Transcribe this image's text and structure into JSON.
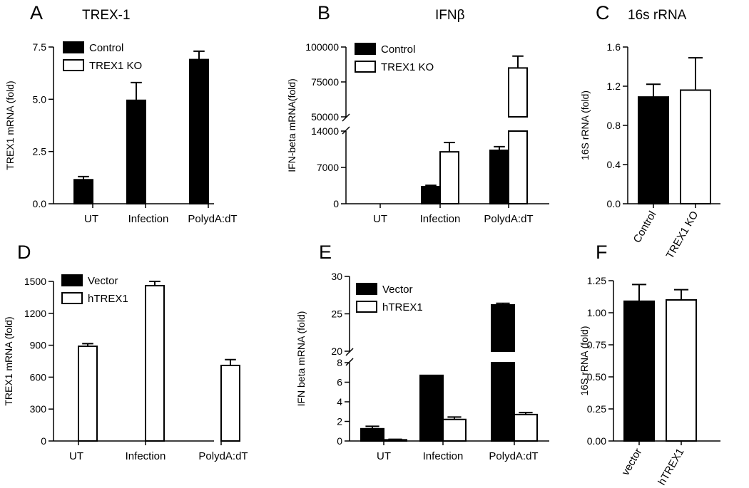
{
  "chart_data": [
    {
      "id": "A",
      "letter": "A",
      "title": "TREX-1",
      "type": "bar",
      "ylabel": "TREX1 mRNA (fold)",
      "ylim": [
        0,
        7.5
      ],
      "yticks": [
        "0.0",
        "2.5",
        "5.0",
        "7.5"
      ],
      "ytick_values": [
        0,
        2.5,
        5.0,
        7.5
      ],
      "categories": [
        "UT",
        "Infection",
        "PolydA:dT"
      ],
      "legend": "top-left",
      "series": [
        {
          "name": "Control",
          "fill": "#000000",
          "values": [
            1.15,
            4.95,
            6.9
          ],
          "errors": [
            0.15,
            0.85,
            0.4
          ]
        },
        {
          "name": "TREX1 KO",
          "fill": "#ffffff",
          "values": [
            0,
            0,
            0
          ],
          "errors": [
            0,
            0,
            0
          ]
        }
      ]
    },
    {
      "id": "B",
      "letter": "B",
      "title": "IFNβ",
      "type": "bar",
      "ylabel": "IFN-beta mRNA(fold)",
      "ylim_lower": [
        0,
        14000
      ],
      "ylim_upper": [
        50000,
        100000
      ],
      "yticks_lower": [
        "0",
        "7000",
        "14000"
      ],
      "ytick_values_lower": [
        0,
        7000,
        14000
      ],
      "yticks_upper": [
        "50000",
        "75000",
        "100000"
      ],
      "ytick_values_upper": [
        50000,
        75000,
        100000
      ],
      "categories": [
        "UT",
        "Infection",
        "PolydA:dT"
      ],
      "legend": "top-left",
      "series": [
        {
          "name": "Control",
          "fill": "#000000",
          "values": [
            0,
            3300,
            10300
          ],
          "errors": [
            0,
            250,
            700
          ]
        },
        {
          "name": "TREX1 KO",
          "fill": "#ffffff",
          "values": [
            0,
            10000,
            85000
          ],
          "errors": [
            0,
            1800,
            8500
          ]
        }
      ]
    },
    {
      "id": "C",
      "letter": "C",
      "title": "16s rRNA",
      "type": "bar",
      "ylabel": "16S rRNA (fold)",
      "ylim": [
        0,
        1.6
      ],
      "yticks": [
        "0.0",
        "0.4",
        "0.8",
        "1.2",
        "1.6"
      ],
      "ytick_values": [
        0,
        0.4,
        0.8,
        1.2,
        1.6
      ],
      "categories": [
        "Control",
        "TREX1 KO"
      ],
      "bars": [
        {
          "fill": "#000000",
          "value": 1.09,
          "error": 0.13
        },
        {
          "fill": "#ffffff",
          "value": 1.16,
          "error": 0.33
        }
      ]
    },
    {
      "id": "D",
      "letter": "D",
      "title": "",
      "type": "bar",
      "ylabel": "TREX1 mRNA (fold)",
      "ylim": [
        0,
        1500
      ],
      "yticks": [
        "0",
        "300",
        "600",
        "900",
        "1200",
        "1500"
      ],
      "ytick_values": [
        0,
        300,
        600,
        900,
        1200,
        1500
      ],
      "categories": [
        "UT",
        "Infection",
        "PolydA:dT"
      ],
      "legend": "top-left",
      "series": [
        {
          "name": "Vector",
          "fill": "#000000",
          "values": [
            0,
            0,
            0
          ],
          "errors": [
            0,
            0,
            0
          ]
        },
        {
          "name": "hTREX1",
          "fill": "#ffffff",
          "values": [
            890,
            1460,
            710
          ],
          "errors": [
            25,
            40,
            55
          ]
        }
      ]
    },
    {
      "id": "E",
      "letter": "E",
      "title": "",
      "type": "bar",
      "ylabel": "IFN  beta mRNA (fold)",
      "ylim_lower": [
        0,
        8
      ],
      "ylim_upper": [
        20,
        30
      ],
      "yticks_lower": [
        "0",
        "2",
        "4",
        "6",
        "8"
      ],
      "ytick_values_lower": [
        0,
        2,
        4,
        6,
        8
      ],
      "yticks_upper": [
        "20",
        "25",
        "30"
      ],
      "ytick_values_upper": [
        20,
        25,
        30
      ],
      "categories": [
        "UT",
        "Infection",
        "PolydA:dT"
      ],
      "legend": "top-left",
      "series": [
        {
          "name": "Vector",
          "fill": "#000000",
          "values": [
            1.25,
            6.7,
            26.2
          ],
          "errors": [
            0.25,
            0,
            0.2
          ]
        },
        {
          "name": "hTREX1",
          "fill": "#ffffff",
          "values": [
            0.12,
            2.2,
            2.7
          ],
          "errors": [
            0.05,
            0.25,
            0.2
          ]
        }
      ]
    },
    {
      "id": "F",
      "letter": "F",
      "title": "",
      "type": "bar",
      "ylabel": "16S rRNA (fold)",
      "ylim": [
        0,
        1.25
      ],
      "yticks": [
        "0.00",
        "0.25",
        "0.50",
        "0.75",
        "1.00",
        "1.25"
      ],
      "ytick_values": [
        0,
        0.25,
        0.5,
        0.75,
        1.0,
        1.25
      ],
      "categories": [
        "vector",
        "hTREX1"
      ],
      "bars": [
        {
          "fill": "#000000",
          "value": 1.09,
          "error": 0.13
        },
        {
          "fill": "#ffffff",
          "value": 1.1,
          "error": 0.08
        }
      ]
    }
  ]
}
